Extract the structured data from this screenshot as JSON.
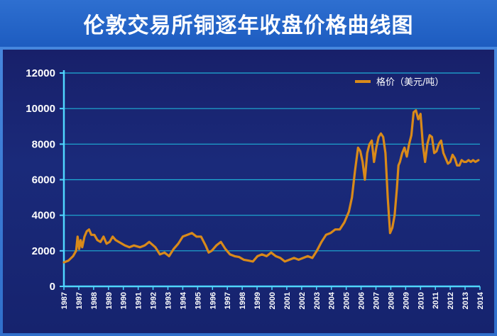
{
  "title": "伦敦交易所铜逐年收盘价格曲线图",
  "colors": {
    "line": "#d98a1a",
    "grid": "#1fb0d6",
    "axis": "#4fd6ff",
    "plot_bg": "#18206a",
    "frame": "#3f7fd6",
    "title_bg": "#1d5cc0"
  },
  "chart_data": {
    "type": "line",
    "title": "伦敦交易所铜逐年收盘价格曲线图",
    "xlabel": "",
    "ylabel": "",
    "ylim": [
      0,
      12000
    ],
    "xlim": [
      1987,
      2014.3
    ],
    "yticks": [
      0,
      2000,
      4000,
      6000,
      8000,
      10000,
      12000
    ],
    "ytick_labels": [
      "0",
      "2000",
      "4000",
      "6000",
      "8000",
      "10000",
      "12000"
    ],
    "xtick_labels": [
      "1987",
      "1987",
      "1988",
      "1989",
      "1990",
      "1991",
      "1992",
      "1993",
      "1994",
      "1995",
      "1996",
      "1997",
      "1998",
      "1999",
      "2000",
      "2001",
      "2002",
      "2003",
      "2004",
      "2005",
      "2006",
      "2007",
      "2008",
      "2009",
      "2010",
      "2011",
      "2012",
      "2013",
      "2014"
    ],
    "grid": true,
    "legend_position": "top-right",
    "series": [
      {
        "name": "格价（美元/吨）",
        "x": [
          1987.0,
          1987.3,
          1987.6,
          1987.8,
          1987.9,
          1988.0,
          1988.1,
          1988.2,
          1988.35,
          1988.5,
          1988.65,
          1988.8,
          1989.0,
          1989.2,
          1989.4,
          1989.6,
          1989.8,
          1990.0,
          1990.2,
          1990.4,
          1990.6,
          1990.8,
          1991.0,
          1991.3,
          1991.6,
          1992.0,
          1992.3,
          1992.6,
          1993.0,
          1993.3,
          1993.6,
          1993.9,
          1994.2,
          1994.5,
          1994.8,
          1995.1,
          1995.4,
          1995.7,
          1996.0,
          1996.3,
          1996.5,
          1996.7,
          1997.0,
          1997.3,
          1997.6,
          1997.9,
          1998.2,
          1998.5,
          1998.8,
          1999.1,
          1999.4,
          1999.7,
          2000.0,
          2000.3,
          2000.6,
          2000.9,
          2001.2,
          2001.5,
          2001.8,
          2002.1,
          2002.4,
          2002.7,
          2003.0,
          2003.3,
          2003.6,
          2003.9,
          2004.2,
          2004.5,
          2004.8,
          2005.1,
          2005.4,
          2005.7,
          2005.9,
          2006.1,
          2006.3,
          2006.45,
          2006.6,
          2006.75,
          2006.9,
          2007.05,
          2007.2,
          2007.35,
          2007.5,
          2007.65,
          2007.8,
          2007.95,
          2008.1,
          2008.25,
          2008.4,
          2008.55,
          2008.7,
          2008.85,
          2008.95,
          2009.05,
          2009.2,
          2009.35,
          2009.5,
          2009.65,
          2009.8,
          2009.95,
          2010.1,
          2010.25,
          2010.4,
          2010.55,
          2010.7,
          2010.85,
          2011.0,
          2011.15,
          2011.3,
          2011.45,
          2011.6,
          2011.75,
          2011.9,
          2012.05,
          2012.2,
          2012.35,
          2012.5,
          2012.65,
          2012.8,
          2012.95,
          2013.1,
          2013.25,
          2013.4,
          2013.55,
          2013.7,
          2013.85,
          2014.0,
          2014.2
        ],
        "values": [
          1350,
          1450,
          1700,
          2000,
          2800,
          2100,
          2600,
          2200,
          2800,
          3100,
          3200,
          2900,
          2900,
          2600,
          2500,
          2800,
          2400,
          2500,
          2800,
          2600,
          2500,
          2400,
          2300,
          2200,
          2300,
          2200,
          2300,
          2500,
          2200,
          1800,
          1900,
          1700,
          2100,
          2400,
          2800,
          2900,
          3000,
          2800,
          2800,
          2300,
          1900,
          2000,
          2300,
          2500,
          2100,
          1800,
          1700,
          1650,
          1500,
          1450,
          1400,
          1700,
          1800,
          1700,
          1900,
          1700,
          1600,
          1400,
          1500,
          1600,
          1500,
          1600,
          1700,
          1600,
          2000,
          2500,
          2900,
          3000,
          3200,
          3200,
          3600,
          4200,
          5000,
          6500,
          7800,
          7600,
          7000,
          6000,
          7500,
          8000,
          8200,
          7000,
          7800,
          8400,
          8600,
          8400,
          7500,
          5000,
          3000,
          3300,
          4000,
          5500,
          6800,
          7000,
          7500,
          7800,
          7300,
          8000,
          8500,
          9800,
          9900,
          9400,
          9700,
          8000,
          7000,
          8000,
          8500,
          8400,
          7500,
          7600,
          8000,
          8200,
          7500,
          7200,
          6900,
          7000,
          7400,
          7200,
          6800,
          6800,
          7100,
          7000,
          7000,
          7100,
          7000,
          7100,
          7000,
          7100
        ]
      }
    ]
  }
}
